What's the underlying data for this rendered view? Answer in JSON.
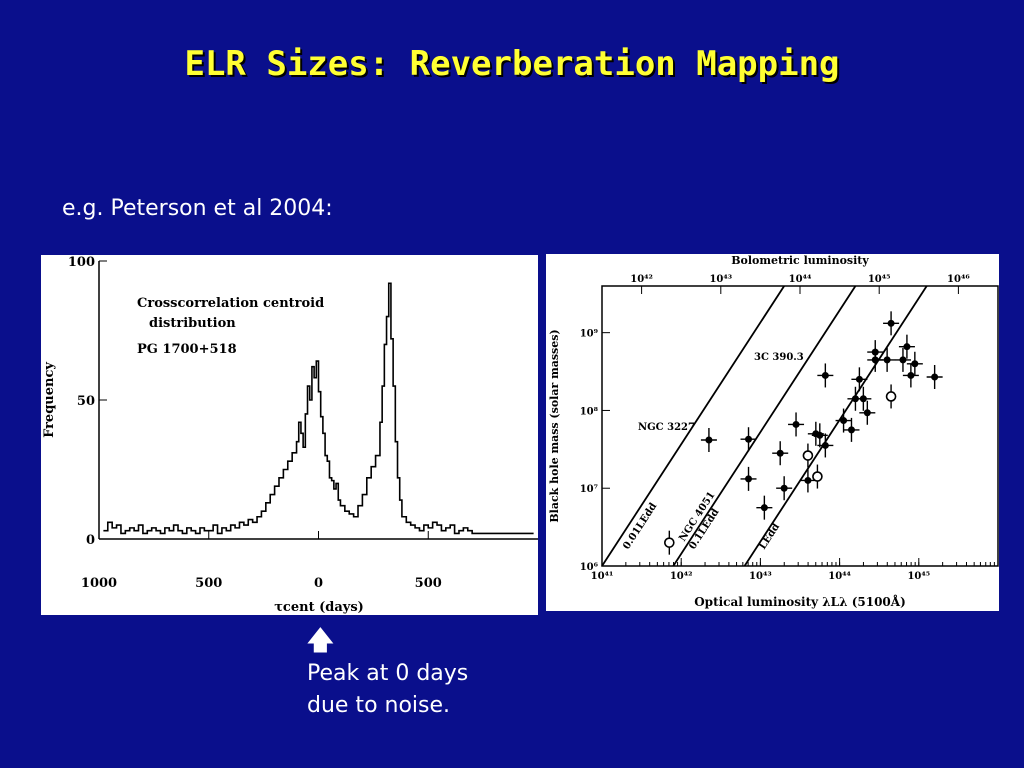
{
  "slide": {
    "title": "ELR Sizes: Reverberation Mapping",
    "subtitle": "e.g. Peterson et al 2004:",
    "note_arrow": "🡅",
    "note_line1": "Peak at 0 days",
    "note_line2": "due to noise."
  },
  "chart_data": [
    {
      "type": "line",
      "annotation_lines": [
        "Crosscorrelation centroid",
        "distribution",
        "PG 1700+518"
      ],
      "xlabel": "τcent (days)",
      "ylabel": "Frequency",
      "x_ticks": [
        "1000",
        "500",
        "0",
        "500"
      ],
      "y_ticks": [
        "100",
        "50",
        "0"
      ],
      "xlim": [
        -1000,
        1000
      ],
      "ylim": [
        0,
        100
      ],
      "series": [
        {
          "x": [
            -980,
            -960,
            -940,
            -920,
            -900,
            -880,
            -860,
            -840,
            -820,
            -800,
            -780,
            -760,
            -740,
            -720,
            -700,
            -680,
            -660,
            -640,
            -620,
            -600,
            -580,
            -560,
            -540,
            -520,
            -500,
            -480,
            -460,
            -440,
            -420,
            -400,
            -380,
            -360,
            -340,
            -320,
            -300,
            -280,
            -260,
            -240,
            -220,
            -200,
            -180,
            -160,
            -140,
            -120,
            -100,
            -90,
            -80,
            -70,
            -60,
            -50,
            -40,
            -30,
            -20,
            -10,
            0,
            10,
            20,
            30,
            40,
            50,
            60,
            70,
            80,
            90,
            100,
            120,
            140,
            160,
            180,
            200,
            220,
            240,
            260,
            280,
            290,
            300,
            310,
            320,
            330,
            340,
            350,
            360,
            370,
            380,
            400,
            420,
            440,
            460,
            480,
            500,
            520,
            540,
            560,
            580,
            600,
            620,
            640,
            660,
            680,
            700,
            720,
            760,
            800,
            840,
            880,
            920,
            960
          ],
          "y": [
            3,
            6,
            4,
            5,
            2,
            3,
            4,
            3,
            5,
            2,
            3,
            4,
            3,
            2,
            4,
            3,
            5,
            3,
            2,
            4,
            3,
            2,
            4,
            3,
            3,
            5,
            2,
            4,
            3,
            5,
            4,
            6,
            5,
            7,
            6,
            8,
            10,
            13,
            16,
            19,
            22,
            25,
            28,
            31,
            35,
            42,
            38,
            33,
            45,
            55,
            50,
            62,
            58,
            64,
            53,
            44,
            38,
            30,
            28,
            22,
            21,
            18,
            20,
            14,
            12,
            10,
            9,
            8,
            12,
            16,
            22,
            26,
            30,
            42,
            55,
            70,
            80,
            92,
            72,
            55,
            35,
            22,
            14,
            8,
            6,
            5,
            4,
            3,
            5,
            4,
            6,
            5,
            3,
            4,
            5,
            2,
            3,
            4,
            3,
            2,
            2,
            2,
            2,
            2,
            2,
            2,
            2
          ]
        }
      ]
    },
    {
      "type": "scatter",
      "title": "Bolometric luminosity",
      "xlabel": "Optical luminosity λLλ (5100Å)",
      "ylabel": "Black hole mass (solar masses)",
      "x_ticks_bottom": [
        "10⁴¹",
        "10⁴²",
        "10⁴³",
        "10⁴⁴",
        "10⁴⁵"
      ],
      "x_ticks_top": [
        "10⁴²",
        "10⁴³",
        "10⁴⁴",
        "10⁴⁵",
        "10⁴⁶"
      ],
      "y_ticks": [
        "10⁶",
        "10⁷",
        "10⁸",
        "10⁹"
      ],
      "xlim": [
        41,
        46
      ],
      "ylim": [
        6,
        9.6
      ],
      "log_scale": true,
      "line_labels": [
        "0.01LEdd",
        "0.1LEdd",
        "LEdd"
      ],
      "object_labels": [
        "3C 390.3",
        "NGC 3227",
        "NGC 4051"
      ],
      "filled_points": [
        {
          "x": 42.35,
          "y": 7.62
        },
        {
          "x": 42.85,
          "y": 7.63
        },
        {
          "x": 42.85,
          "y": 7.12
        },
        {
          "x": 43.05,
          "y": 6.75
        },
        {
          "x": 43.25,
          "y": 7.45
        },
        {
          "x": 43.3,
          "y": 7.0
        },
        {
          "x": 43.45,
          "y": 7.82
        },
        {
          "x": 43.7,
          "y": 7.7
        },
        {
          "x": 43.75,
          "y": 7.68
        },
        {
          "x": 43.82,
          "y": 7.55
        },
        {
          "x": 43.6,
          "y": 7.1
        },
        {
          "x": 43.82,
          "y": 8.45
        },
        {
          "x": 44.05,
          "y": 7.87
        },
        {
          "x": 44.15,
          "y": 7.75
        },
        {
          "x": 44.2,
          "y": 8.15
        },
        {
          "x": 44.25,
          "y": 8.4
        },
        {
          "x": 44.3,
          "y": 8.15
        },
        {
          "x": 44.35,
          "y": 7.97
        },
        {
          "x": 44.45,
          "y": 8.65
        },
        {
          "x": 44.45,
          "y": 8.75
        },
        {
          "x": 44.6,
          "y": 8.65
        },
        {
          "x": 44.65,
          "y": 9.12
        },
        {
          "x": 44.8,
          "y": 8.65
        },
        {
          "x": 44.85,
          "y": 8.82
        },
        {
          "x": 44.9,
          "y": 8.45
        },
        {
          "x": 44.95,
          "y": 8.6
        },
        {
          "x": 45.2,
          "y": 8.43
        }
      ],
      "open_points": [
        {
          "x": 41.85,
          "y": 6.3
        },
        {
          "x": 43.6,
          "y": 7.42
        },
        {
          "x": 43.72,
          "y": 7.15
        },
        {
          "x": 44.65,
          "y": 8.18
        }
      ]
    }
  ]
}
